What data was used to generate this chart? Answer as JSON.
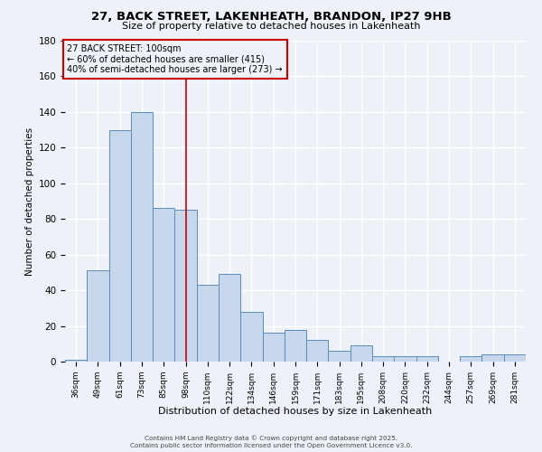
{
  "title_line1": "27, BACK STREET, LAKENHEATH, BRANDON, IP27 9HB",
  "title_line2": "Size of property relative to detached houses in Lakenheath",
  "xlabel": "Distribution of detached houses by size in Lakenheath",
  "ylabel": "Number of detached properties",
  "categories": [
    "36sqm",
    "49sqm",
    "61sqm",
    "73sqm",
    "85sqm",
    "98sqm",
    "110sqm",
    "122sqm",
    "134sqm",
    "146sqm",
    "159sqm",
    "171sqm",
    "183sqm",
    "195sqm",
    "208sqm",
    "220sqm",
    "232sqm",
    "244sqm",
    "257sqm",
    "269sqm",
    "281sqm"
  ],
  "values": [
    1,
    51,
    130,
    140,
    86,
    85,
    43,
    49,
    28,
    16,
    18,
    12,
    6,
    9,
    3,
    3,
    3,
    0,
    3,
    4,
    4
  ],
  "bar_color": "#c8d8ec",
  "bar_edge_color": "#5b8db8",
  "vline_x_index": 5,
  "vline_color": "#cc0000",
  "annotation_title": "27 BACK STREET: 100sqm",
  "annotation_line2": "← 60% of detached houses are smaller (415)",
  "annotation_line3": "40% of semi-detached houses are larger (273) →",
  "annotation_box_edge_color": "#cc0000",
  "ylim": [
    0,
    180
  ],
  "yticks": [
    0,
    20,
    40,
    60,
    80,
    100,
    120,
    140,
    160,
    180
  ],
  "background_color": "#eef2f8",
  "grid_color": "#ffffff",
  "footer_line1": "Contains HM Land Registry data © Crown copyright and database right 2025.",
  "footer_line2": "Contains public sector information licensed under the Open Government Licence v3.0."
}
